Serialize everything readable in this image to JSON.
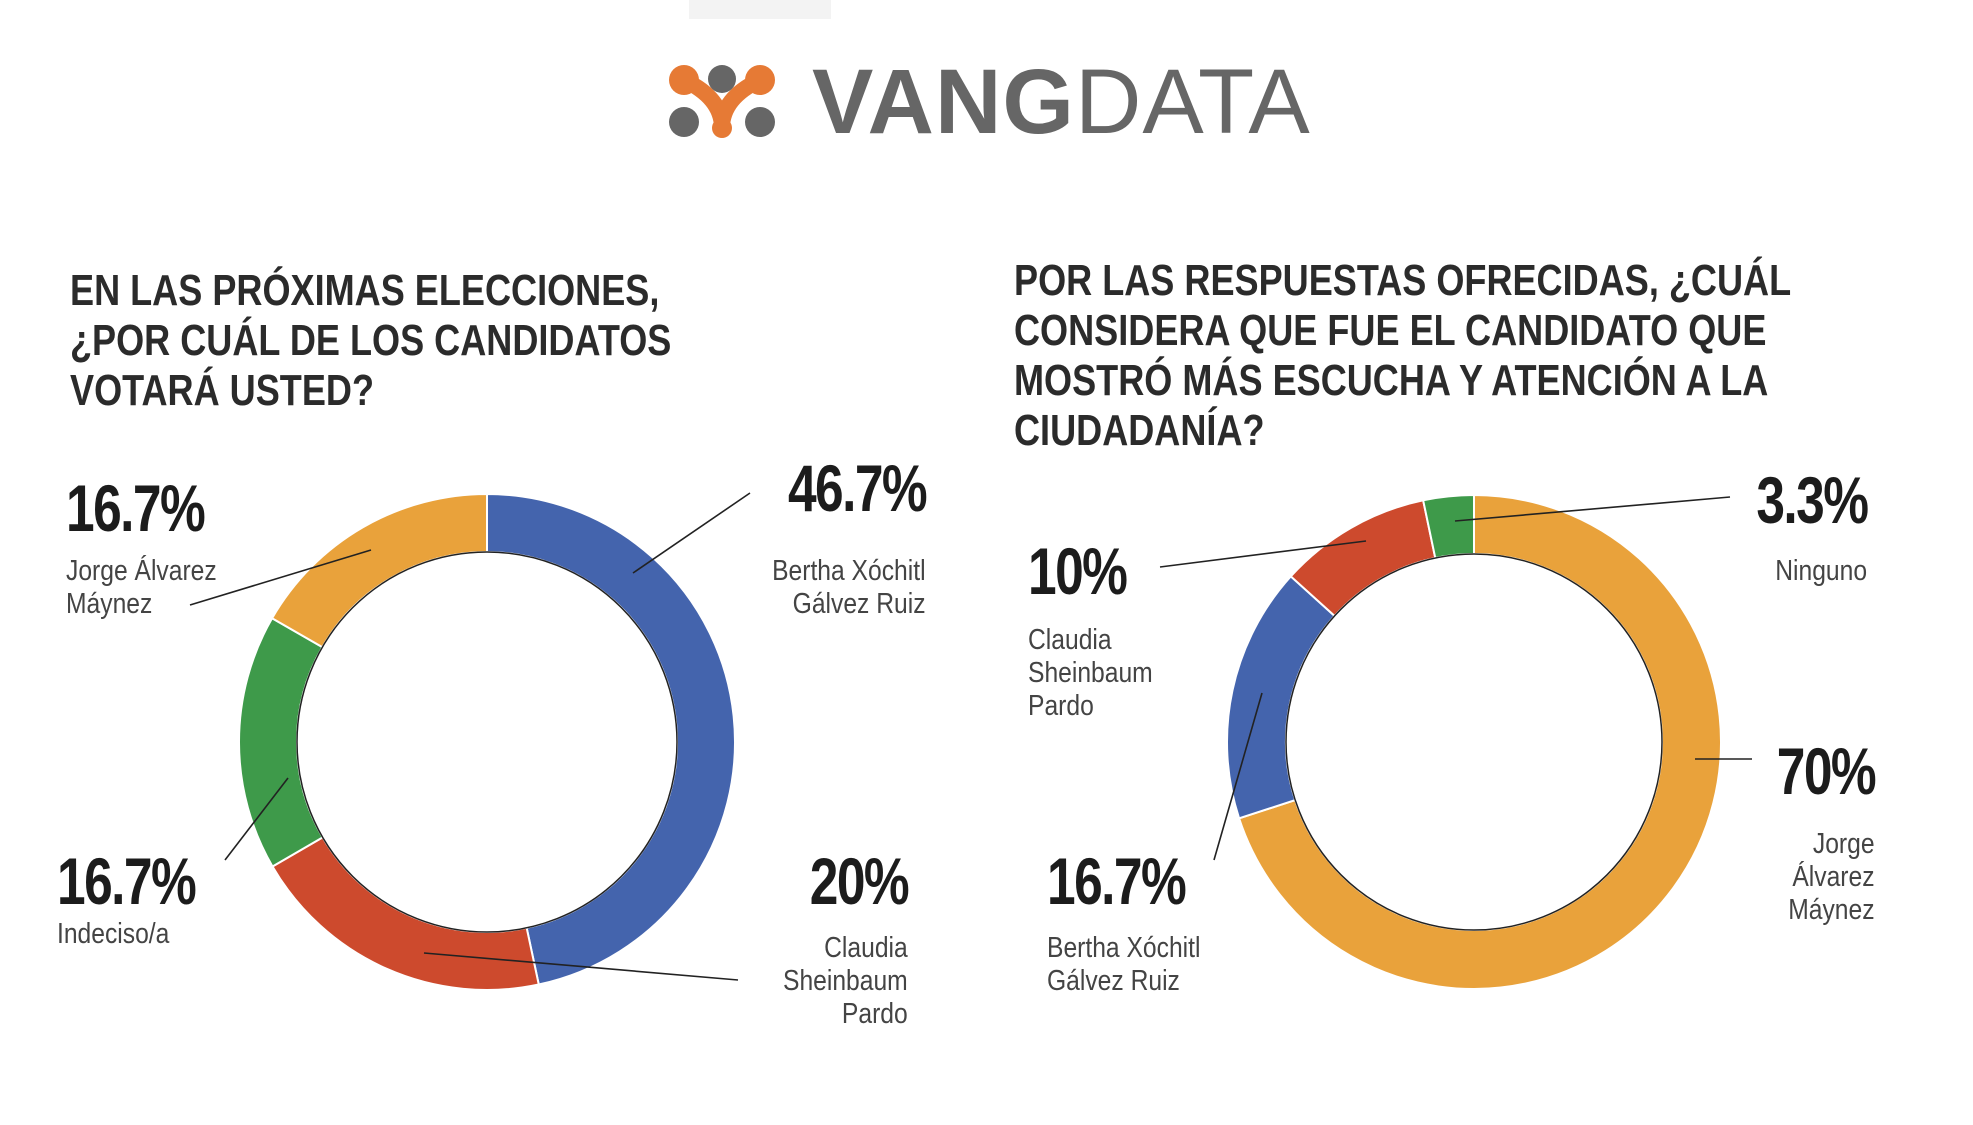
{
  "brand": {
    "name_bold": "VANG",
    "name_light": "DATA"
  },
  "chart_data": [
    {
      "type": "pie",
      "variant": "donut",
      "title": "EN LAS PRÓXIMAS ELECCIONES, ¿POR CUÁL DE LOS CANDIDATOS VOTARÁ USTED?",
      "title_lines": [
        "EN LAS PRÓXIMAS ELECCIONES,",
        "¿POR CUÁL DE LOS CANDIDATOS",
        "VOTARÁ USTED?"
      ],
      "slices": [
        {
          "name": "Bertha Xóchitl Gálvez Ruiz",
          "label_lines": "Bertha Xóchitl\nGálvez Ruiz",
          "value": 46.7,
          "value_label": "46.7%",
          "color": "#4464ad"
        },
        {
          "name": "Claudia Sheinbaum Pardo",
          "label_lines": "Claudia\nSheinbaum\nPardo",
          "value": 20,
          "value_label": "20%",
          "color": "#cd4a2d"
        },
        {
          "name": "Indeciso/a",
          "label_lines": "Indeciso/a",
          "value": 16.7,
          "value_label": "16.7%",
          "color": "#3e9a4a"
        },
        {
          "name": "Jorge Álvarez Máynez",
          "label_lines": "Jorge Álvarez\nMáynez",
          "value": 16.7,
          "value_label": "16.7%",
          "color": "#e9a23b"
        }
      ]
    },
    {
      "type": "pie",
      "variant": "donut",
      "title": "POR LAS RESPUESTAS OFRECIDAS, ¿CUÁL CONSIDERA QUE FUE EL CANDIDATO QUE MOSTRÓ MÁS ESCUCHA Y ATENCIÓN A LA CIUDADANÍA?",
      "title_lines": [
        "POR LAS RESPUESTAS OFRECIDAS, ¿CUÁL",
        "CONSIDERA QUE FUE EL CANDIDATO QUE",
        "MOSTRÓ MÁS ESCUCHA Y ATENCIÓN A LA",
        "CIUDADANÍA?"
      ],
      "slices": [
        {
          "name": "Jorge Álvarez Máynez",
          "label_lines": "Jorge\nÁlvarez\nMáynez",
          "value": 70,
          "value_label": "70%",
          "color": "#e9a23b"
        },
        {
          "name": "Bertha Xóchitl Gálvez Ruiz",
          "label_lines": "Bertha Xóchitl\nGálvez Ruiz",
          "value": 16.7,
          "value_label": "16.7%",
          "color": "#4464ad"
        },
        {
          "name": "Claudia Sheinbaum Pardo",
          "label_lines": "Claudia\nSheinbaum\nPardo",
          "value": 10,
          "value_label": "10%",
          "color": "#cd4a2d"
        },
        {
          "name": "Ninguno",
          "label_lines": "Ninguno",
          "value": 3.3,
          "value_label": "3.3%",
          "color": "#3e9a4a"
        }
      ]
    }
  ]
}
